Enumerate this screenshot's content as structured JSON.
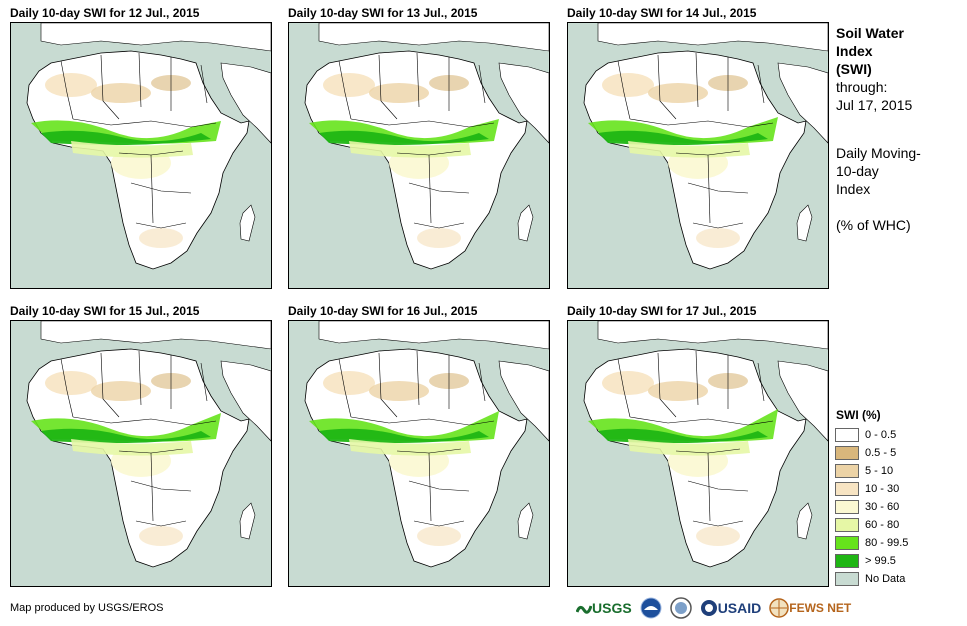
{
  "panels": [
    {
      "title": "Daily 10-day  SWI for 12 Jul., 2015"
    },
    {
      "title": "Daily 10-day  SWI for 13 Jul., 2015"
    },
    {
      "title": "Daily 10-day  SWI for 14 Jul., 2015"
    },
    {
      "title": "Daily 10-day  SWI for 15 Jul., 2015"
    },
    {
      "title": "Daily 10-day  SWI for 16 Jul., 2015"
    },
    {
      "title": "Daily 10-day  SWI for 17 Jul., 2015"
    }
  ],
  "side": {
    "title_line1": "Soil Water",
    "title_line2": "Index",
    "title_line3": "(SWI)",
    "through_label": "through:",
    "through_date": "Jul 17, 2015",
    "desc_line1": "Daily Moving-",
    "desc_line2": "10-day",
    "desc_line3": "Index",
    "unit": "(% of WHC)"
  },
  "legend": {
    "title": "SWI (%)",
    "items": [
      {
        "label": "0 - 0.5",
        "color": "#ffffff"
      },
      {
        "label": "0.5 - 5",
        "color": "#d9b77c"
      },
      {
        "label": "5 - 10",
        "color": "#ecd3a6"
      },
      {
        "label": "10 - 30",
        "color": "#f7e4c3"
      },
      {
        "label": "30 - 60",
        "color": "#fbf8d2"
      },
      {
        "label": "60 - 80",
        "color": "#e6f7a6"
      },
      {
        "label": "80 - 99.5",
        "color": "#66e31c"
      },
      {
        "label": "> 99.5",
        "color": "#1fb614"
      },
      {
        "label": "No Data",
        "color": "#c8dbd2"
      }
    ]
  },
  "credit": "Map produced by USGS/EROS",
  "logos": {
    "usgs": "USGS",
    "usaid": "USAID",
    "fewsnet": "FEWS NET"
  },
  "colors": {
    "ocean": "#c8dbd2",
    "land": "#ffffff",
    "border": "#000000"
  }
}
